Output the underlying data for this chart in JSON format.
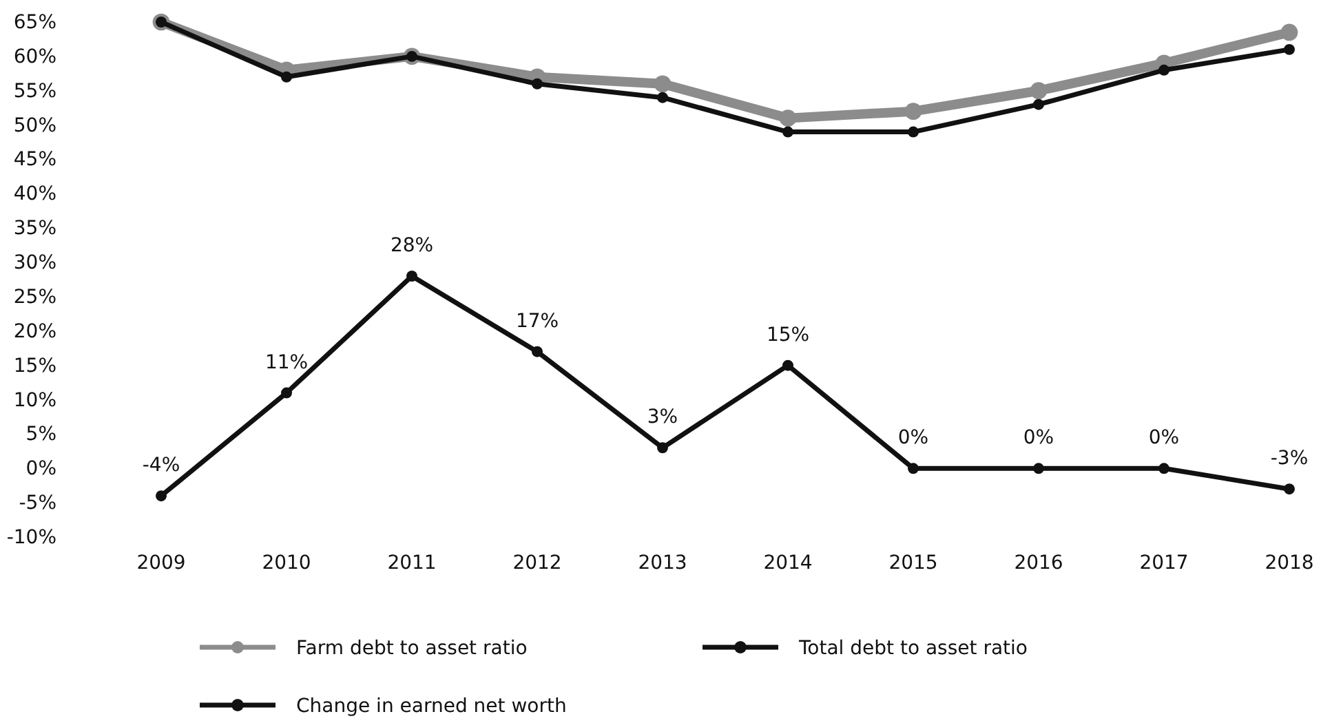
{
  "chart_data": {
    "type": "line",
    "categories": [
      "2009",
      "2010",
      "2011",
      "2012",
      "2013",
      "2014",
      "2015",
      "2016",
      "2017",
      "2018"
    ],
    "series": [
      {
        "name": "Farm debt to asset ratio",
        "color": "#8c8c8c",
        "values": [
          65,
          58,
          60,
          57,
          56,
          51,
          52,
          55,
          59,
          63.5
        ]
      },
      {
        "name": "Total debt to asset ratio",
        "color": "#111111",
        "values": [
          65,
          57,
          60,
          56,
          54,
          49,
          49,
          53,
          58,
          61
        ]
      },
      {
        "name": "Change in earned net worth",
        "color": "#111111",
        "values": [
          -4,
          11,
          28,
          17,
          3,
          15,
          0,
          0,
          0,
          -3
        ],
        "value_labels": [
          "-4%",
          "11%",
          "28%",
          "17%",
          "3%",
          "15%",
          "0%",
          "0%",
          "0%",
          "-3%"
        ]
      }
    ],
    "ylim": [
      -10,
      65
    ],
    "yticks": [
      {
        "value": -10,
        "label": "-10%"
      },
      {
        "value": -5,
        "label": "-5%"
      },
      {
        "value": 0,
        "label": "0%"
      },
      {
        "value": 5,
        "label": "5%"
      },
      {
        "value": 10,
        "label": "10%"
      },
      {
        "value": 15,
        "label": "15%"
      },
      {
        "value": 20,
        "label": "20%"
      },
      {
        "value": 25,
        "label": "25%"
      },
      {
        "value": 30,
        "label": "30%"
      },
      {
        "value": 35,
        "label": "35%"
      },
      {
        "value": 40,
        "label": "40%"
      },
      {
        "value": 45,
        "label": "45%"
      },
      {
        "value": 50,
        "label": "50%"
      },
      {
        "value": 55,
        "label": "55%"
      },
      {
        "value": 60,
        "label": "60%"
      },
      {
        "value": 65,
        "label": "65%"
      }
    ],
    "grid": false,
    "legend": "bottom",
    "marker": "circle",
    "line_style": "solid"
  }
}
